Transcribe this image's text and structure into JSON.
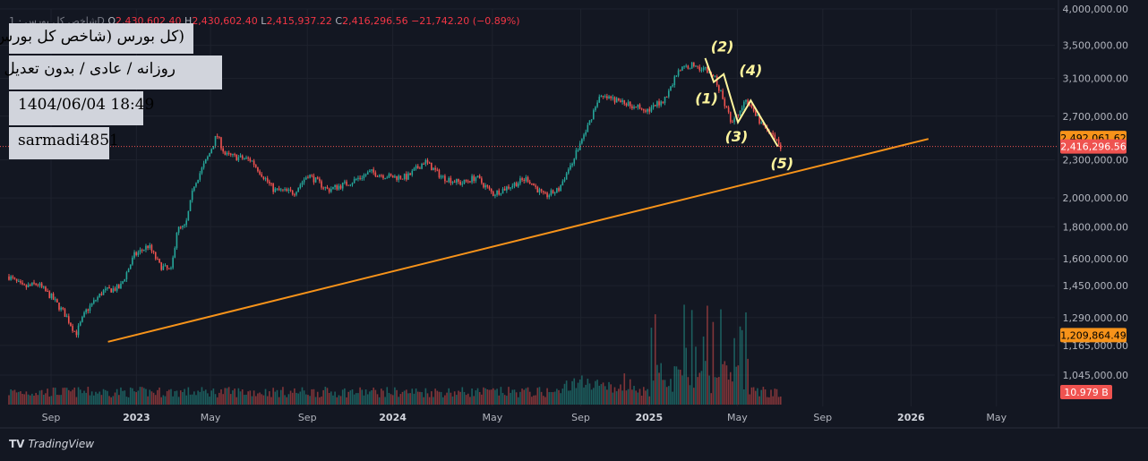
{
  "header": {
    "symbol": "شاخص کل بورس · 1D",
    "o_label": "O",
    "o_value": "2,430,602.40",
    "h_label": "H",
    "h_value": "2,430,602.40",
    "l_label": "L",
    "l_value": "2,415,937.22",
    "c_label": "C",
    "c_value": "2,416,296.56",
    "change": "−21,742.20 (−0.89%)"
  },
  "info_boxes": {
    "title": "(کل بورس (شاخص کل بورس",
    "subtitle": "روزانه / عادی / بدون تعدیل",
    "datetime": "1404/06/04 18:49",
    "author": "sarmadi4851"
  },
  "branding": {
    "logo_text": "TradingView"
  },
  "colors": {
    "background": "#131722",
    "up": "#26a69a",
    "down": "#ef5350",
    "trendline": "#f7931a",
    "wave": "#fff59d",
    "grid": "#1e222d"
  },
  "chart_data": {
    "type": "candlestick",
    "y_scale": "log",
    "ylim": [
      950000,
      4000000
    ],
    "x_ticks": [
      "Sep",
      "2023",
      "May",
      "Sep",
      "2024",
      "May",
      "Sep",
      "2025",
      "May",
      "Sep",
      "2026",
      "May"
    ],
    "y_ticks": [
      "4,000,000.00",
      "3,500,000.00",
      "3,100,000.00",
      "2,700,000.00",
      "2,300,000.00",
      "2,000,000.00",
      "1,800,000.00",
      "1,600,000.00",
      "1,450,000.00",
      "1,290,000.00",
      "1,165,000.00",
      "1,045,000.00"
    ],
    "last_price": "2,416,296.56",
    "price_labels": [
      {
        "value": 2492061.62,
        "text": "2,492,061.62",
        "color": "#f7931a"
      },
      {
        "value": 2416296.56,
        "text": "2,416,296.56",
        "color": "#ef5350"
      },
      {
        "value": 1209864.49,
        "text": "1,209,864.49",
        "color": "#f7931a"
      }
    ],
    "volume_label": "10.979 B",
    "price_path": [
      {
        "t": 0,
        "v": 1500000
      },
      {
        "t": 0.5,
        "v": 1440000
      },
      {
        "t": 1,
        "v": 1460000
      },
      {
        "t": 1.5,
        "v": 1390000
      },
      {
        "t": 2.0,
        "v": 1300000
      },
      {
        "t": 2.35,
        "v": 1215000
      },
      {
        "t": 2.7,
        "v": 1320000
      },
      {
        "t": 3.3,
        "v": 1420000
      },
      {
        "t": 3.9,
        "v": 1440000
      },
      {
        "t": 4.4,
        "v": 1620000
      },
      {
        "t": 4.9,
        "v": 1680000
      },
      {
        "t": 5.3,
        "v": 1560000
      },
      {
        "t": 5.7,
        "v": 1530000
      },
      {
        "t": 5.9,
        "v": 1780000
      },
      {
        "t": 6.2,
        "v": 1800000
      },
      {
        "t": 6.5,
        "v": 2100000
      },
      {
        "t": 7.0,
        "v": 2330000
      },
      {
        "t": 7.3,
        "v": 2520000
      },
      {
        "t": 7.6,
        "v": 2340000
      },
      {
        "t": 8.5,
        "v": 2300000
      },
      {
        "t": 9.3,
        "v": 2060000
      },
      {
        "t": 10.0,
        "v": 2040000
      },
      {
        "t": 10.5,
        "v": 2180000
      },
      {
        "t": 11.2,
        "v": 2060000
      },
      {
        "t": 12.0,
        "v": 2120000
      },
      {
        "t": 12.7,
        "v": 2200000
      },
      {
        "t": 13.4,
        "v": 2160000
      },
      {
        "t": 14.0,
        "v": 2160000
      },
      {
        "t": 14.6,
        "v": 2290000
      },
      {
        "t": 15.2,
        "v": 2160000
      },
      {
        "t": 15.9,
        "v": 2110000
      },
      {
        "t": 16.4,
        "v": 2160000
      },
      {
        "t": 17.0,
        "v": 2030000
      },
      {
        "t": 17.6,
        "v": 2090000
      },
      {
        "t": 18.2,
        "v": 2150000
      },
      {
        "t": 18.8,
        "v": 2010000
      },
      {
        "t": 19.3,
        "v": 2060000
      },
      {
        "t": 19.8,
        "v": 2300000
      },
      {
        "t": 20.3,
        "v": 2580000
      },
      {
        "t": 20.7,
        "v": 2890000
      },
      {
        "t": 21.1,
        "v": 2880000
      },
      {
        "t": 21.8,
        "v": 2820000
      },
      {
        "t": 22.5,
        "v": 2760000
      },
      {
        "t": 23.1,
        "v": 2900000
      },
      {
        "t": 23.5,
        "v": 3200000
      },
      {
        "t": 24.0,
        "v": 3260000
      },
      {
        "t": 24.4,
        "v": 3220000
      },
      {
        "t": 24.8,
        "v": 3100000
      },
      {
        "t": 25.4,
        "v": 2620000
      },
      {
        "t": 25.9,
        "v": 2860000
      },
      {
        "t": 26.6,
        "v": 2560000
      },
      {
        "t": 27.1,
        "v": 2416296
      }
    ],
    "trendline": {
      "start": {
        "t": 2.0,
        "v": 1200000
      },
      "end": {
        "t": 31.0,
        "v": 2492061
      }
    },
    "wave_path": [
      {
        "t": 24.45,
        "v": 3340000
      },
      {
        "t": 24.75,
        "v": 3060000
      },
      {
        "t": 25.1,
        "v": 3150000
      },
      {
        "t": 25.6,
        "v": 2640000
      },
      {
        "t": 26.05,
        "v": 2860000
      },
      {
        "t": 27.0,
        "v": 2416296
      }
    ],
    "wave_labels": [
      {
        "text": "(1)",
        "t": 24.5,
        "v": 2830000
      },
      {
        "text": "(2)",
        "t": 25.05,
        "v": 3420000
      },
      {
        "text": "(3)",
        "t": 25.55,
        "v": 2460000
      },
      {
        "text": "(4)",
        "t": 26.05,
        "v": 3140000
      },
      {
        "text": "(5)",
        "t": 27.15,
        "v": 2230000
      }
    ]
  }
}
